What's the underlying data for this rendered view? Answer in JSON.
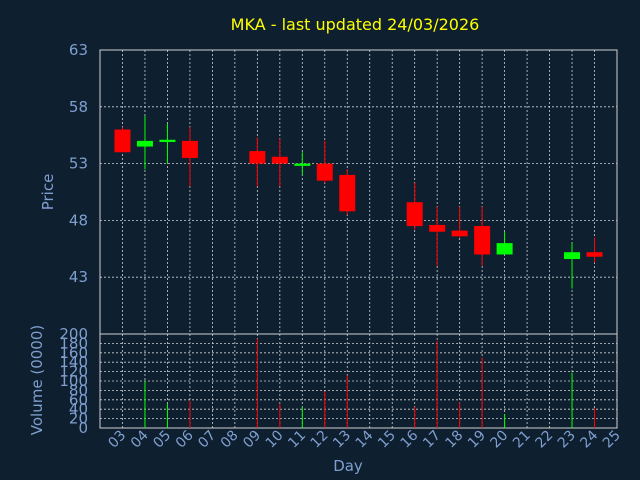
{
  "title": "MKA - last updated 24/03/2026",
  "colors": {
    "background": "#0e1f30",
    "axis_text": "#7f9fcf",
    "title": "#ffff00",
    "up": "#00ff00",
    "down": "#ff0000",
    "grid": "#d0d0d0"
  },
  "chart_data": [
    {
      "type": "candlestick",
      "title": "MKA - last updated 24/03/2026",
      "ylabel": "Price",
      "ylim": [
        38,
        63
      ],
      "yticks": [
        43,
        48,
        53,
        58,
        63
      ],
      "grid": true,
      "x": [
        "03",
        "04",
        "05",
        "06",
        "07",
        "08",
        "09",
        "10",
        "11",
        "12",
        "13",
        "14",
        "15",
        "16",
        "17",
        "18",
        "19",
        "20",
        "21",
        "22",
        "23",
        "24",
        "25"
      ],
      "candles": [
        {
          "day": "03",
          "open": 56.0,
          "high": 56.2,
          "low": 54.0,
          "close": 54.0
        },
        {
          "day": "04",
          "open": 54.5,
          "high": 57.2,
          "low": 52.5,
          "close": 55.0
        },
        {
          "day": "05",
          "open": 54.9,
          "high": 56.5,
          "low": 53.0,
          "close": 55.1
        },
        {
          "day": "06",
          "open": 55.0,
          "high": 56.2,
          "low": 51.0,
          "close": 53.5
        },
        {
          "day": "09",
          "open": 54.1,
          "high": 55.3,
          "low": 51.0,
          "close": 53.0
        },
        {
          "day": "10",
          "open": 53.6,
          "high": 55.2,
          "low": 51.0,
          "close": 53.0
        },
        {
          "day": "11",
          "open": 52.8,
          "high": 54.0,
          "low": 52.0,
          "close": 53.0
        },
        {
          "day": "12",
          "open": 53.0,
          "high": 55.0,
          "low": 51.3,
          "close": 51.5
        },
        {
          "day": "13",
          "open": 52.0,
          "high": 52.5,
          "low": 48.5,
          "close": 48.8
        },
        {
          "day": "16",
          "open": 49.6,
          "high": 51.3,
          "low": 47.2,
          "close": 47.5
        },
        {
          "day": "17",
          "open": 47.6,
          "high": 49.2,
          "low": 44.0,
          "close": 47.0
        },
        {
          "day": "18",
          "open": 47.1,
          "high": 49.2,
          "low": 46.5,
          "close": 46.6
        },
        {
          "day": "19",
          "open": 47.5,
          "high": 49.2,
          "low": 44.0,
          "close": 45.0
        },
        {
          "day": "20",
          "open": 45.0,
          "high": 47.0,
          "low": 45.0,
          "close": 46.0
        },
        {
          "day": "23",
          "open": 44.6,
          "high": 46.0,
          "low": 42.0,
          "close": 45.2
        },
        {
          "day": "24",
          "open": 45.2,
          "high": 46.5,
          "low": 44.3,
          "close": 44.8
        }
      ]
    },
    {
      "type": "bar",
      "ylabel": "Volume (0000)",
      "xlabel": "Day",
      "ylim": [
        0,
        200
      ],
      "yticks": [
        0,
        20,
        40,
        60,
        80,
        100,
        120,
        140,
        160,
        180,
        200
      ],
      "x": [
        "03",
        "04",
        "05",
        "06",
        "07",
        "08",
        "09",
        "10",
        "11",
        "12",
        "13",
        "14",
        "15",
        "16",
        "17",
        "18",
        "19",
        "20",
        "21",
        "22",
        "23",
        "24",
        "25"
      ],
      "bars": [
        {
          "day": "04",
          "value": 100,
          "direction": "up"
        },
        {
          "day": "05",
          "value": 52,
          "direction": "up"
        },
        {
          "day": "06",
          "value": 58,
          "direction": "down"
        },
        {
          "day": "09",
          "value": 190,
          "direction": "down"
        },
        {
          "day": "10",
          "value": 52,
          "direction": "down"
        },
        {
          "day": "11",
          "value": 45,
          "direction": "up"
        },
        {
          "day": "12",
          "value": 78,
          "direction": "down"
        },
        {
          "day": "13",
          "value": 112,
          "direction": "down"
        },
        {
          "day": "16",
          "value": 45,
          "direction": "down"
        },
        {
          "day": "17",
          "value": 185,
          "direction": "down"
        },
        {
          "day": "18",
          "value": 55,
          "direction": "down"
        },
        {
          "day": "19",
          "value": 150,
          "direction": "down"
        },
        {
          "day": "20",
          "value": 30,
          "direction": "up"
        },
        {
          "day": "23",
          "value": 118,
          "direction": "up"
        },
        {
          "day": "24",
          "value": 42,
          "direction": "down"
        }
      ]
    }
  ]
}
